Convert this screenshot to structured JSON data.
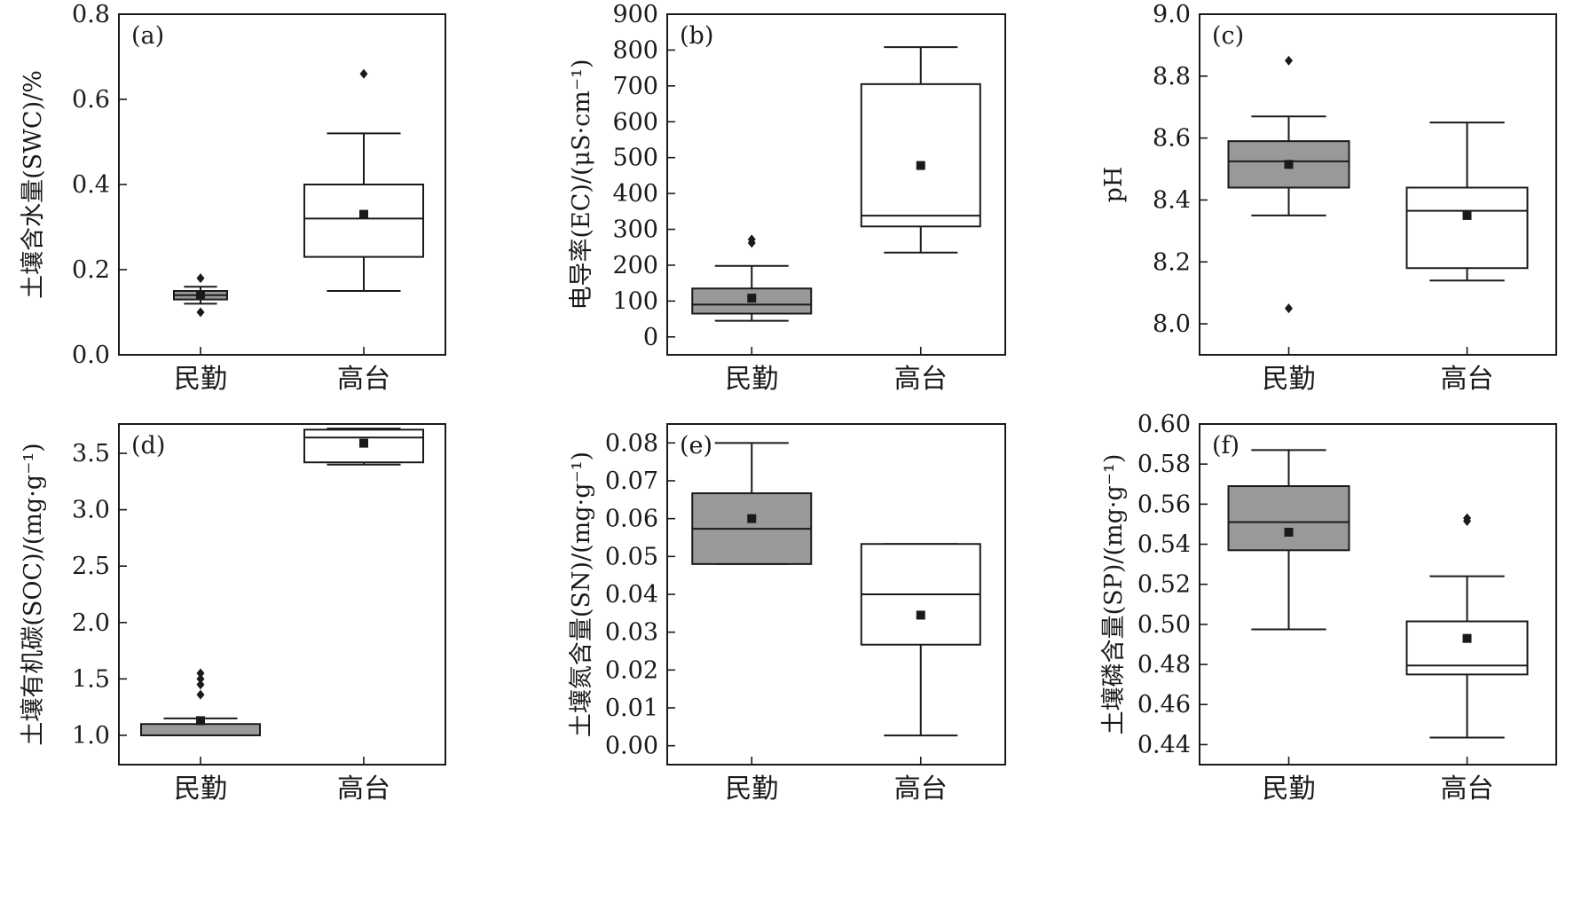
{
  "chart_data": [
    {
      "panel": "(a)",
      "type": "box",
      "ylabel": "土壤含水量(SWC)/%",
      "ylim": [
        0.0,
        0.8
      ],
      "yticks": [
        0.0,
        0.2,
        0.4,
        0.6,
        0.8
      ],
      "yticklabels": [
        "0.0",
        "0.2",
        "0.4",
        "0.6",
        "0.8"
      ],
      "categories": [
        "民勤",
        "高台"
      ],
      "boxes": [
        {
          "category": "民勤",
          "fill": "#999999",
          "whisker_low": 0.12,
          "q1": 0.13,
          "median": 0.14,
          "q3": 0.15,
          "whisker_high": 0.16,
          "mean": 0.14,
          "outliers": [
            0.1,
            0.18
          ]
        },
        {
          "category": "高台",
          "fill": "#ffffff",
          "whisker_low": 0.15,
          "q1": 0.23,
          "median": 0.32,
          "q3": 0.4,
          "whisker_high": 0.52,
          "mean": 0.33,
          "outliers": [
            0.66
          ]
        }
      ]
    },
    {
      "panel": "(b)",
      "type": "box",
      "ylabel": "电导率(EC)/(μS·cm⁻¹)",
      "ylim": [
        -50,
        900
      ],
      "yticks": [
        0,
        100,
        200,
        300,
        400,
        500,
        600,
        700,
        800,
        900
      ],
      "yticklabels": [
        "0",
        "100",
        "200",
        "300",
        "400",
        "500",
        "600",
        "700",
        "800",
        "900"
      ],
      "categories": [
        "民勤",
        "高台"
      ],
      "boxes": [
        {
          "category": "民勤",
          "fill": "#999999",
          "whisker_low": 45,
          "q1": 65,
          "median": 90,
          "q3": 135,
          "whisker_high": 198,
          "mean": 108,
          "outliers": [
            262,
            272
          ]
        },
        {
          "category": "高台",
          "fill": "#ffffff",
          "whisker_low": 235,
          "q1": 308,
          "median": 338,
          "q3": 705,
          "whisker_high": 808,
          "mean": 478,
          "outliers": []
        }
      ]
    },
    {
      "panel": "(c)",
      "type": "box",
      "ylabel": "pH",
      "ylim": [
        7.9,
        9.0
      ],
      "yticks": [
        8.0,
        8.2,
        8.4,
        8.6,
        8.8,
        9.0
      ],
      "yticklabels": [
        "8.0",
        "8.2",
        "8.4",
        "8.6",
        "8.8",
        "9.0"
      ],
      "categories": [
        "民勤",
        "高台"
      ],
      "boxes": [
        {
          "category": "民勤",
          "fill": "#999999",
          "whisker_low": 8.35,
          "q1": 8.44,
          "median": 8.525,
          "q3": 8.59,
          "whisker_high": 8.67,
          "mean": 8.515,
          "outliers": [
            8.05,
            8.85
          ]
        },
        {
          "category": "高台",
          "fill": "#ffffff",
          "whisker_low": 8.14,
          "q1": 8.18,
          "median": 8.365,
          "q3": 8.44,
          "whisker_high": 8.65,
          "mean": 8.35,
          "outliers": []
        }
      ]
    },
    {
      "panel": "(d)",
      "type": "box",
      "ylabel": "土壤有机碳(SOC)/(mg·g⁻¹)",
      "ylim": [
        0.74,
        3.76
      ],
      "yticks": [
        1.0,
        1.5,
        2.0,
        2.5,
        3.0,
        3.5
      ],
      "yticklabels": [
        "1.0",
        "1.5",
        "2.0",
        "2.5",
        "3.0",
        "3.5"
      ],
      "categories": [
        "民勤",
        "高台"
      ],
      "boxes": [
        {
          "category": "民勤",
          "fill": "#999999",
          "whisker_low": 1.0,
          "q1": 1.0,
          "median": 1.0,
          "q3": 1.1,
          "whisker_high": 1.15,
          "mean": 1.13,
          "outliers": [
            1.36,
            1.45,
            1.5,
            1.55
          ]
        },
        {
          "category": "高台",
          "fill": "#ffffff",
          "whisker_low": 3.4,
          "q1": 3.42,
          "median": 3.64,
          "q3": 3.71,
          "whisker_high": 3.72,
          "mean": 3.59,
          "outliers": []
        }
      ]
    },
    {
      "panel": "(e)",
      "type": "box",
      "ylabel": "土壤氮含量(SN)/(mg·g⁻¹)",
      "ylim": [
        -0.005,
        0.085
      ],
      "yticks": [
        0.0,
        0.01,
        0.02,
        0.03,
        0.04,
        0.05,
        0.06,
        0.07,
        0.08
      ],
      "yticklabels": [
        "0.00",
        "0.01",
        "0.02",
        "0.03",
        "0.04",
        "0.05",
        "0.06",
        "0.07",
        "0.08"
      ],
      "categories": [
        "民勤",
        "高台"
      ],
      "boxes": [
        {
          "category": "民勤",
          "fill": "#999999",
          "whisker_low": 0.048,
          "q1": 0.048,
          "median": 0.0573,
          "q3": 0.0667,
          "whisker_high": 0.08,
          "mean": 0.06,
          "outliers": []
        },
        {
          "category": "高台",
          "fill": "#ffffff",
          "whisker_low": 0.0027,
          "q1": 0.0267,
          "median": 0.04,
          "q3": 0.0533,
          "whisker_high": 0.0533,
          "mean": 0.0345,
          "outliers": []
        }
      ]
    },
    {
      "panel": "(f)",
      "type": "box",
      "ylabel": "土壤磷含量(SP)/(mg·g⁻¹)",
      "ylim": [
        0.43,
        0.6
      ],
      "yticks": [
        0.44,
        0.46,
        0.48,
        0.5,
        0.52,
        0.54,
        0.56,
        0.58,
        0.6
      ],
      "yticklabels": [
        "0.44",
        "0.46",
        "0.48",
        "0.50",
        "0.52",
        "0.54",
        "0.56",
        "0.58",
        "0.60"
      ],
      "categories": [
        "民勤",
        "高台"
      ],
      "boxes": [
        {
          "category": "民勤",
          "fill": "#999999",
          "whisker_low": 0.4975,
          "q1": 0.537,
          "median": 0.551,
          "q3": 0.569,
          "whisker_high": 0.587,
          "mean": 0.546,
          "outliers": []
        },
        {
          "category": "高台",
          "fill": "#ffffff",
          "whisker_low": 0.4435,
          "q1": 0.475,
          "median": 0.4795,
          "q3": 0.5015,
          "whisker_high": 0.524,
          "mean": 0.493,
          "outliers": [
            0.5515,
            0.553
          ]
        }
      ]
    }
  ]
}
